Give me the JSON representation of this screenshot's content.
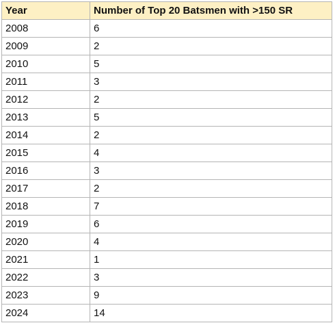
{
  "table": {
    "headers": [
      "Year",
      "Number of Top 20 Batsmen with >150 SR"
    ],
    "rows": [
      [
        "2008",
        "6"
      ],
      [
        "2009",
        "2"
      ],
      [
        "2010",
        "5"
      ],
      [
        "2011",
        "3"
      ],
      [
        "2012",
        "2"
      ],
      [
        "2013",
        "5"
      ],
      [
        "2014",
        "2"
      ],
      [
        "2015",
        "4"
      ],
      [
        "2016",
        "3"
      ],
      [
        "2017",
        "2"
      ],
      [
        "2018",
        "7"
      ],
      [
        "2019",
        "6"
      ],
      [
        "2020",
        "4"
      ],
      [
        "2021",
        "1"
      ],
      [
        "2022",
        "3"
      ],
      [
        "2023",
        "9"
      ],
      [
        "2024",
        "14"
      ]
    ]
  },
  "colors": {
    "header_background": "#fdf0c4",
    "grid_lines": "#b4b4b4",
    "text": "#111111"
  }
}
